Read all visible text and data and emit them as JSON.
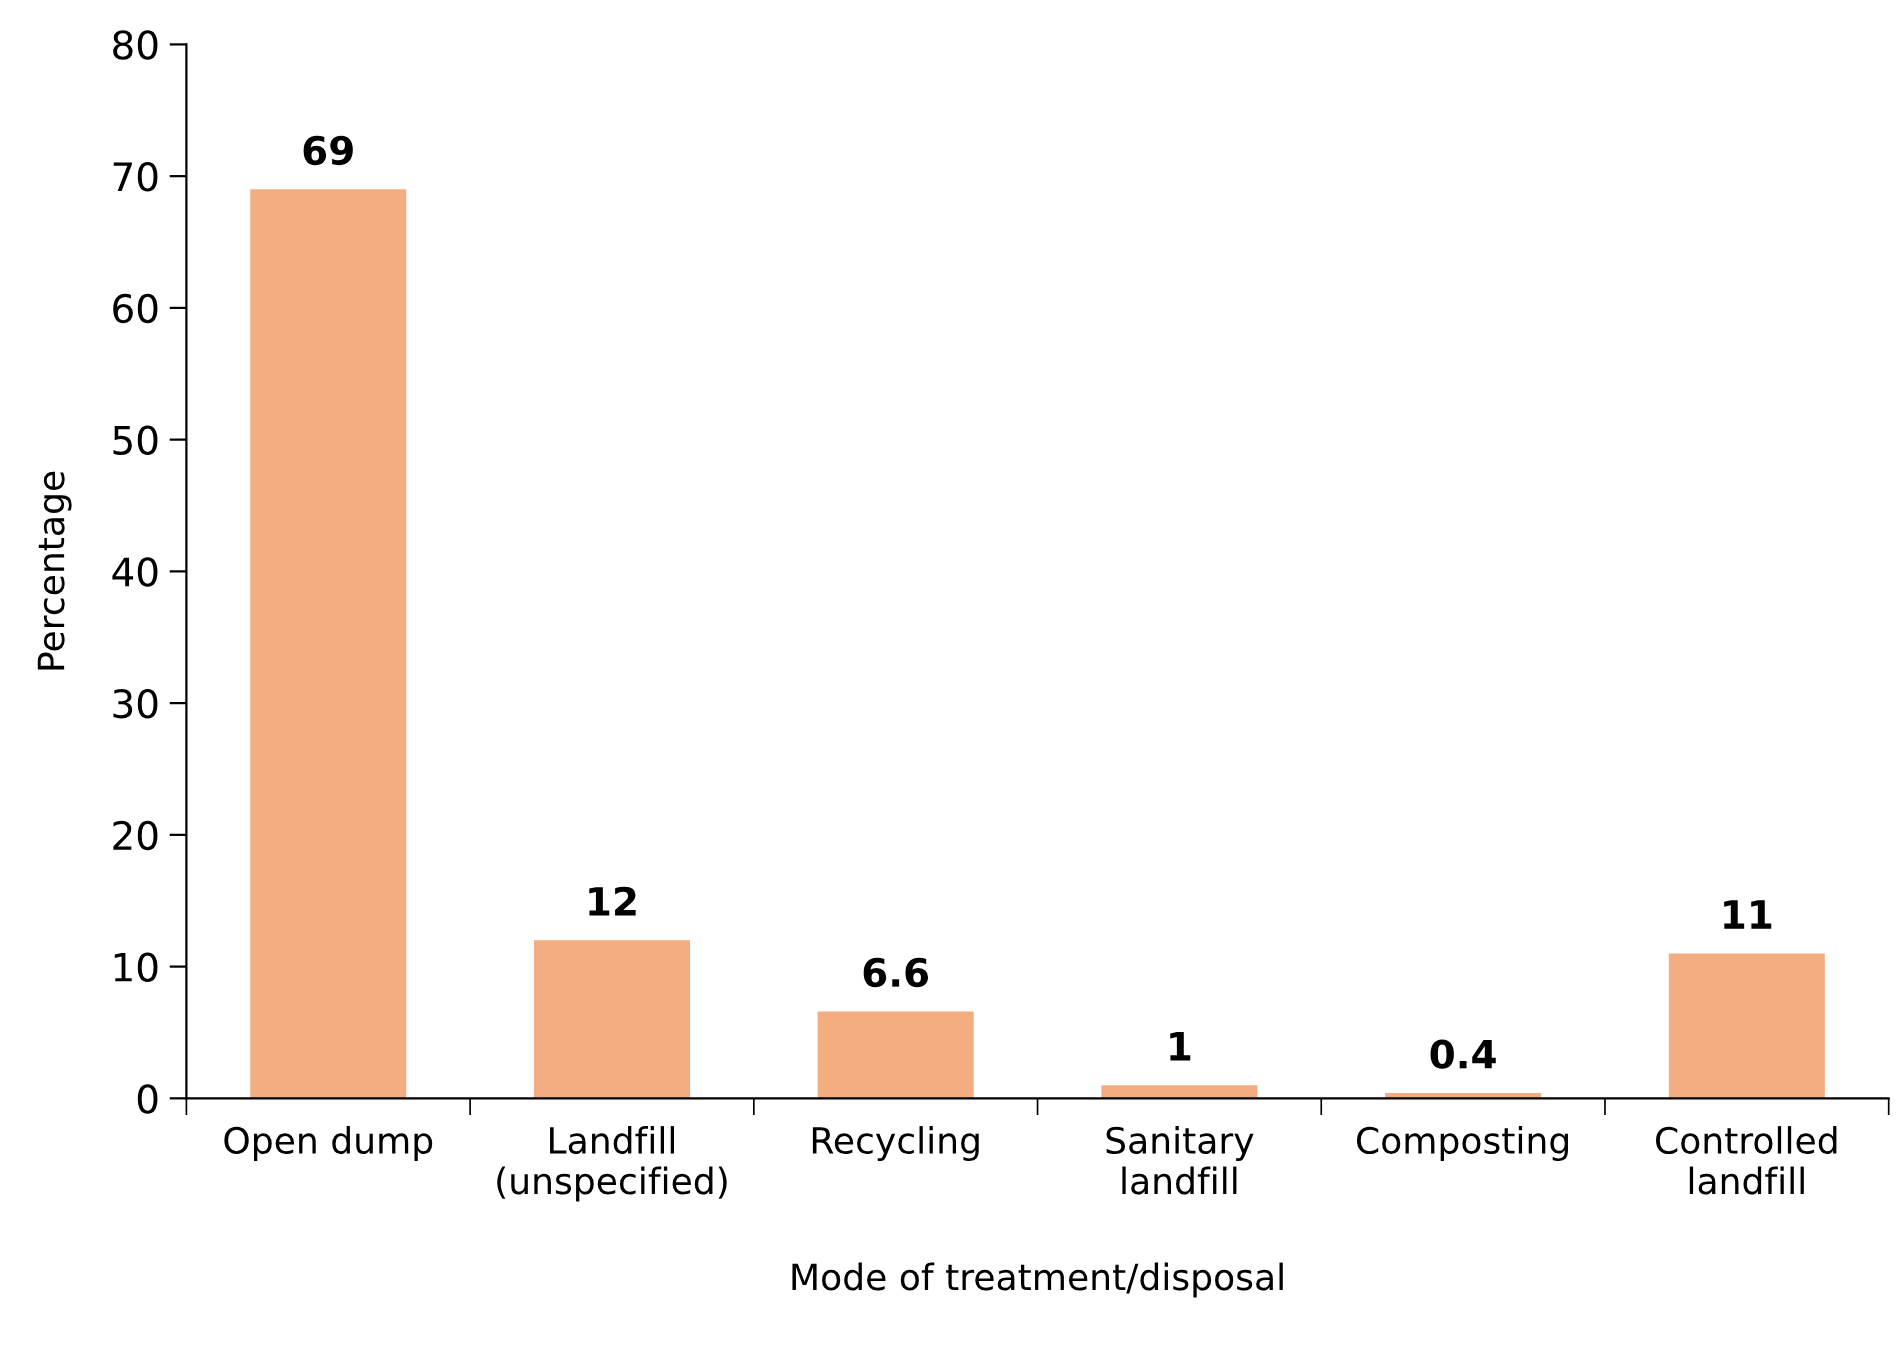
{
  "chart_data": {
    "type": "bar",
    "xlabel": "Mode of treatment/disposal",
    "ylabel": "Percentage",
    "categories": [
      "Open dump",
      "Landfill\n(unspecified)",
      "Recycling",
      "Sanitary\nlandfill",
      "Composting",
      "Controlled\nlandfill"
    ],
    "values": [
      69,
      12,
      6.6,
      1,
      0.4,
      11
    ],
    "color": "#f4ad80",
    "ylim": [
      0,
      80
    ],
    "yticks": [
      0,
      10,
      20,
      30,
      40,
      50,
      60,
      70,
      80
    ],
    "data_labels": true,
    "grid": false,
    "legend": false
  }
}
